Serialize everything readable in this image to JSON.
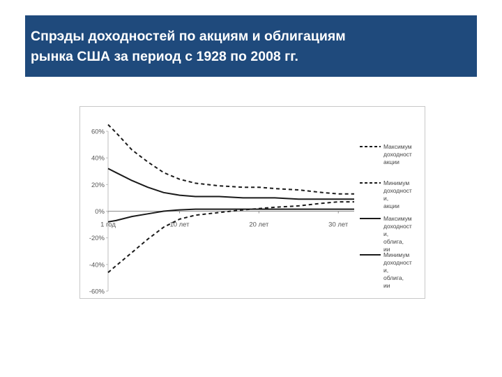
{
  "slide": {
    "title_lines": [
      "Спрэды доходностей по акциям и облигациям",
      "рынка США за период с 1928 по 2008 гг."
    ]
  },
  "chart_data": {
    "type": "line",
    "x": [
      1,
      5,
      10,
      15,
      20,
      25,
      30,
      32
    ],
    "x_tick_labels": [
      "1 год",
      "10 лет",
      "20 лет",
      "30 лет"
    ],
    "x_tick_values": [
      1,
      10,
      20,
      30
    ],
    "y_tick_labels": [
      "60%",
      "40%",
      "20%",
      "0%",
      "-20%",
      "-40%",
      "-60%"
    ],
    "ylim": [
      -0.6,
      0.6
    ],
    "y_ticks": [
      0.6,
      0.4,
      0.2,
      0.0,
      -0.2,
      -0.4,
      -0.6
    ],
    "grid": false,
    "legend_position": "right",
    "series": [
      {
        "name": "Максимум доходност акции",
        "style": "dashed",
        "x": [
          1,
          2,
          4,
          6,
          8,
          10,
          12,
          15,
          18,
          20,
          22,
          25,
          28,
          30,
          32
        ],
        "values": [
          0.65,
          0.59,
          0.46,
          0.37,
          0.29,
          0.24,
          0.21,
          0.19,
          0.18,
          0.18,
          0.17,
          0.16,
          0.14,
          0.13,
          0.13
        ]
      },
      {
        "name": "Минимум доходност и, акции",
        "style": "dashed",
        "x": [
          1,
          2,
          4,
          6,
          8,
          10,
          12,
          15,
          18,
          20,
          22,
          25,
          28,
          30,
          32
        ],
        "values": [
          -0.46,
          -0.41,
          -0.31,
          -0.21,
          -0.12,
          -0.06,
          -0.03,
          -0.01,
          0.01,
          0.02,
          0.03,
          0.04,
          0.06,
          0.07,
          0.07
        ]
      },
      {
        "name": "Максимум доходност и, облига, ии",
        "style": "solid",
        "x": [
          1,
          2,
          4,
          6,
          8,
          10,
          12,
          15,
          18,
          20,
          22,
          25,
          28,
          30,
          32
        ],
        "values": [
          0.32,
          0.29,
          0.23,
          0.18,
          0.14,
          0.12,
          0.11,
          0.11,
          0.1,
          0.1,
          0.1,
          0.09,
          0.09,
          0.09,
          0.09
        ]
      },
      {
        "name": "Минимум доходност и, облига, ии",
        "style": "solid",
        "x": [
          1,
          2,
          4,
          6,
          8,
          10,
          12,
          15,
          18,
          20,
          22,
          25,
          28,
          30,
          32
        ],
        "values": [
          -0.08,
          -0.07,
          -0.04,
          -0.02,
          0.0,
          0.01,
          0.015,
          0.015,
          0.015,
          0.015,
          0.015,
          0.015,
          0.015,
          0.015,
          0.015
        ]
      }
    ]
  }
}
